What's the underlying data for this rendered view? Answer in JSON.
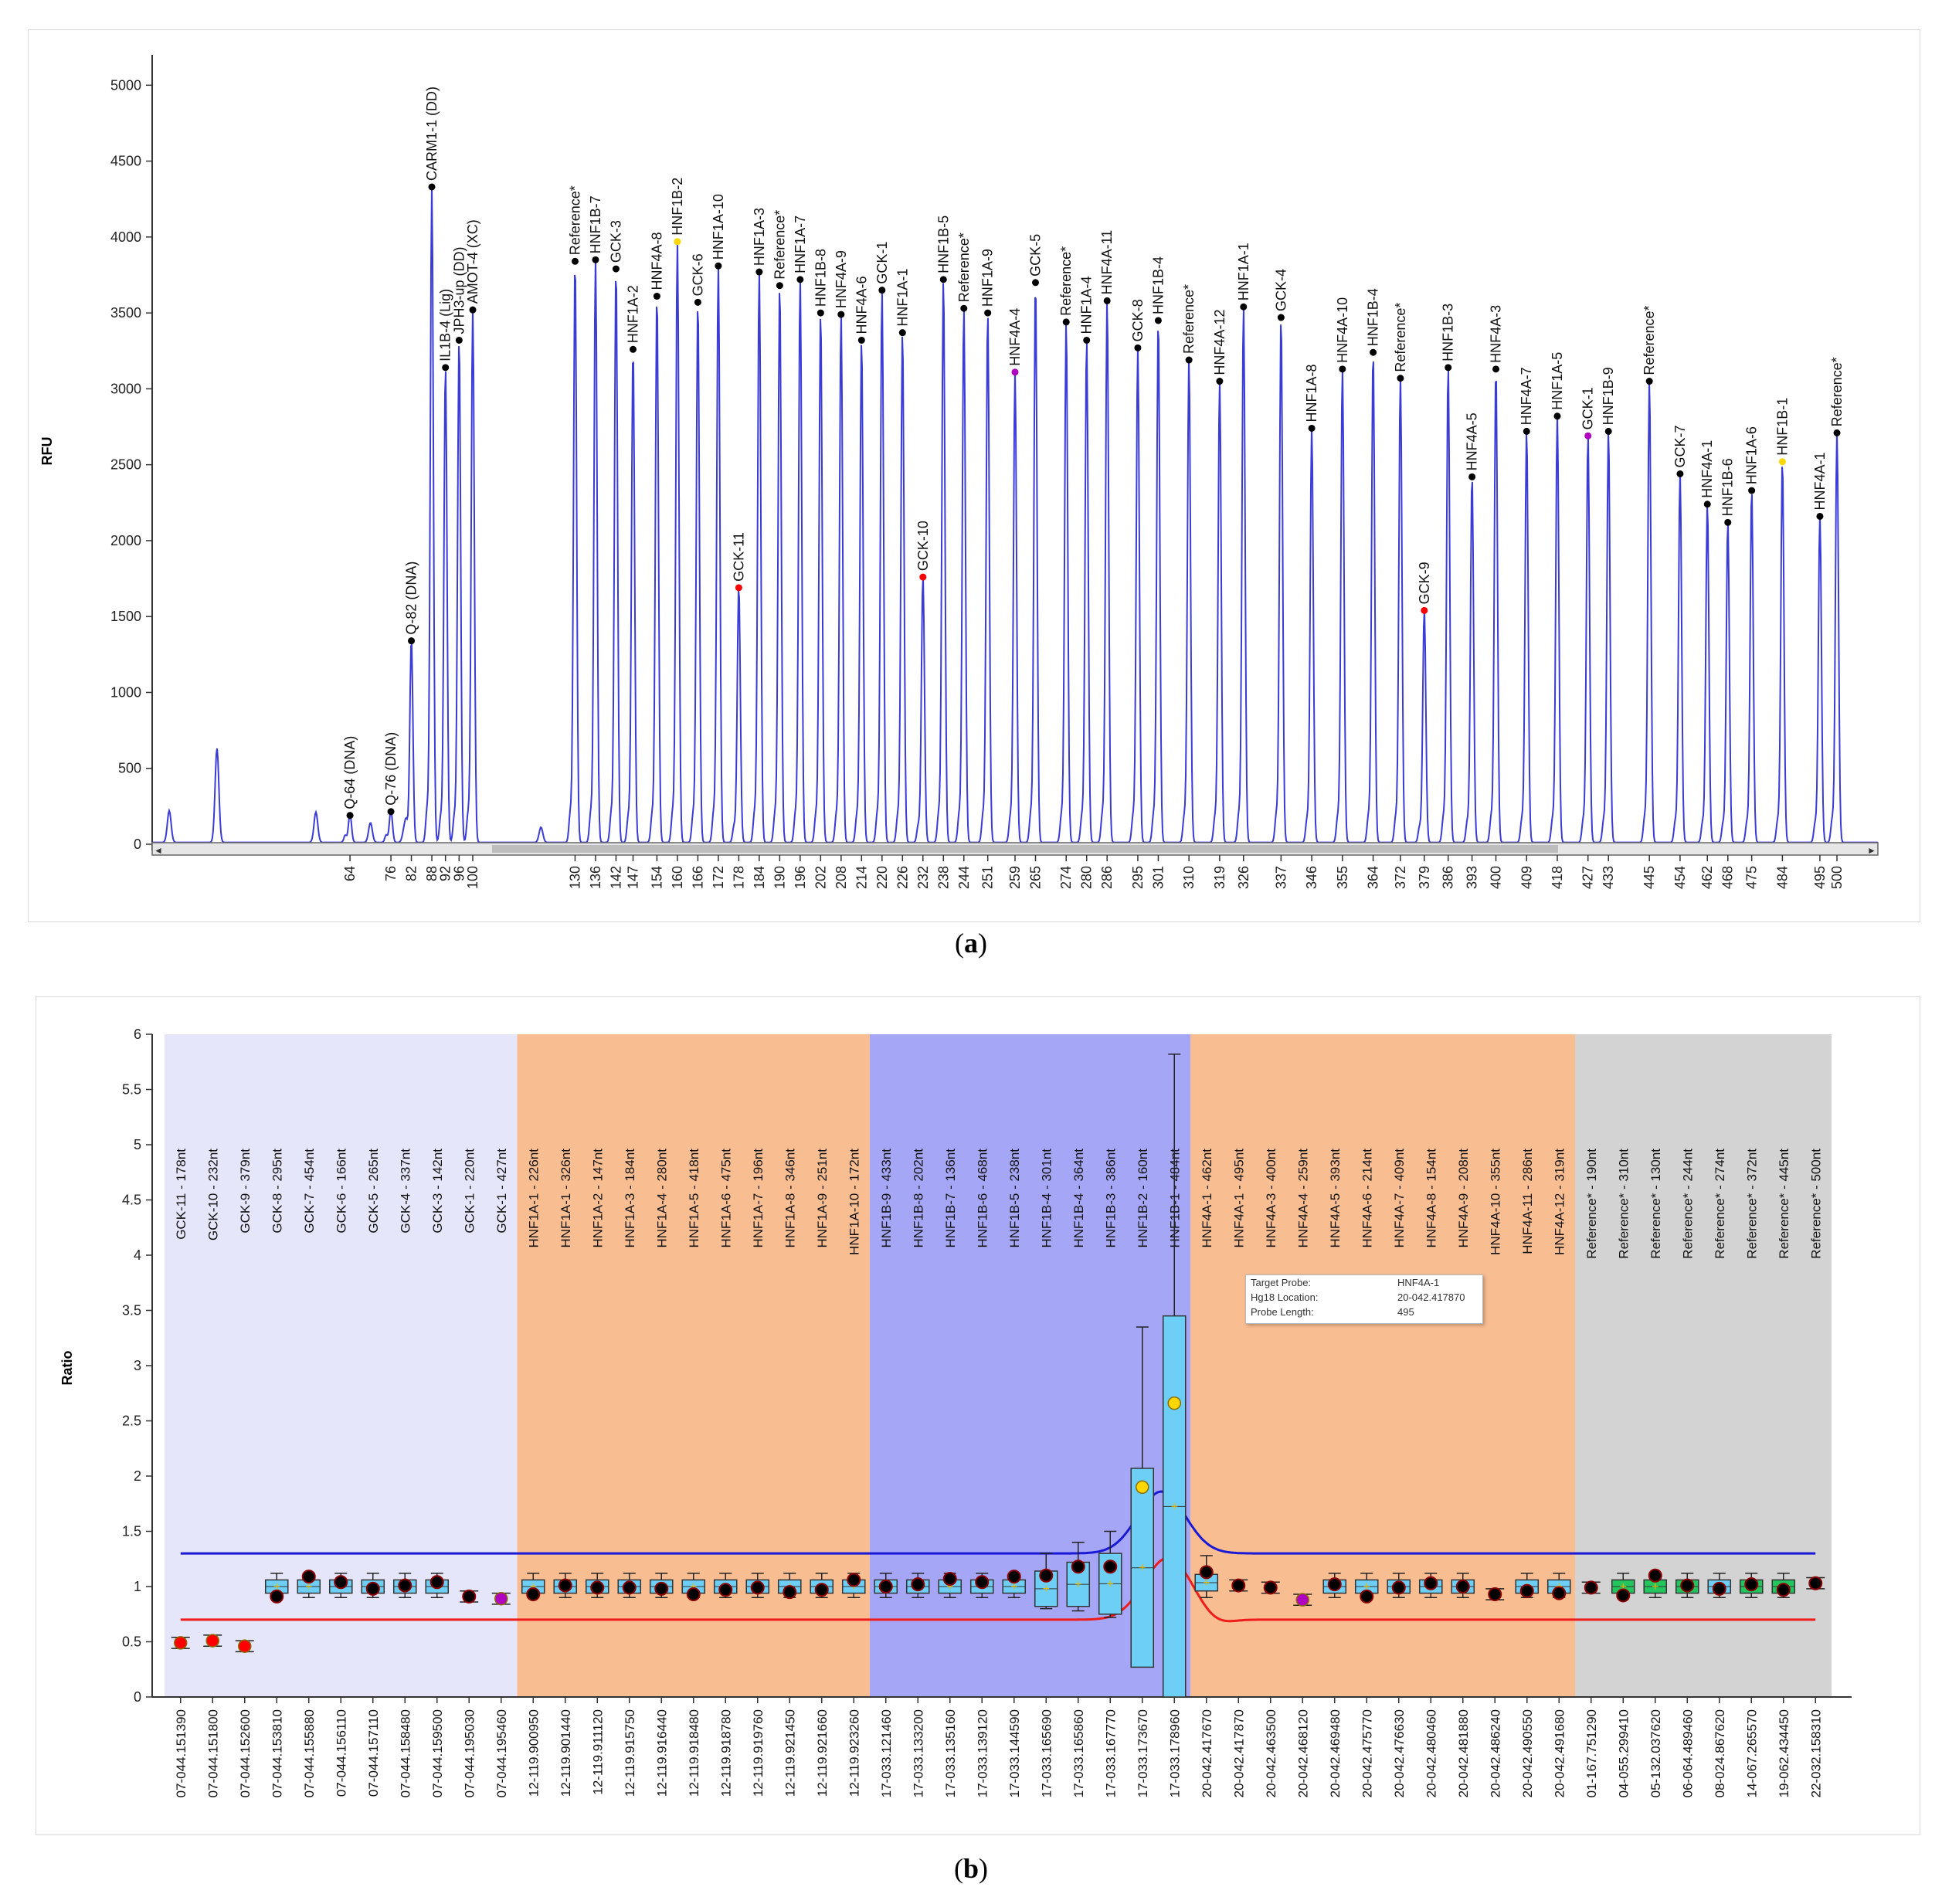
{
  "captions": {
    "a": "a",
    "b": "b"
  },
  "chart_data": [
    {
      "type": "line",
      "panel": "a",
      "ylabel": "RFU",
      "ylim": [
        0,
        5200
      ],
      "yticks": [
        0,
        500,
        1000,
        1500,
        2000,
        2500,
        3000,
        3500,
        4000,
        4500,
        5000
      ],
      "xlim": [
        6,
        512
      ],
      "control_peaks": [
        {
          "x": 11,
          "y": 210
        },
        {
          "x": 25,
          "y": 620
        },
        {
          "x": 54,
          "y": 200
        },
        {
          "x": 70,
          "y": 130
        },
        {
          "x": 80,
          "y": 100
        },
        {
          "x": 120,
          "y": 100
        }
      ],
      "peaks": [
        {
          "x": 64,
          "y": 190,
          "label": "Q-64 (DNA)",
          "color": "black"
        },
        {
          "x": 76,
          "y": 215,
          "label": "Q-76 (DNA)",
          "color": "black"
        },
        {
          "x": 82,
          "y": 1340,
          "label": "Q-82 (DNA)",
          "color": "black"
        },
        {
          "x": 88,
          "y": 4330,
          "label": "CARM1-1 (DD)",
          "color": "black"
        },
        {
          "x": 92,
          "y": 3140,
          "label": "IL1B-4 (Lig)",
          "color": "black"
        },
        {
          "x": 96,
          "y": 3320,
          "label": "JPH3-up (DD)",
          "color": "black"
        },
        {
          "x": 100,
          "y": 3520,
          "label": "AMOT-4 (XC)",
          "color": "black"
        },
        {
          "x": 130,
          "y": 3840,
          "label": "Reference*",
          "color": "black"
        },
        {
          "x": 136,
          "y": 3850,
          "label": "HNF1B-7",
          "color": "black"
        },
        {
          "x": 142,
          "y": 3790,
          "label": "GCK-3",
          "color": "black"
        },
        {
          "x": 147,
          "y": 3260,
          "label": "HNF1A-2",
          "color": "black"
        },
        {
          "x": 154,
          "y": 3610,
          "label": "HNF4A-8",
          "color": "black"
        },
        {
          "x": 160,
          "y": 3970,
          "label": "HNF1B-2",
          "color": "yellow"
        },
        {
          "x": 166,
          "y": 3570,
          "label": "GCK-6",
          "color": "black"
        },
        {
          "x": 172,
          "y": 3810,
          "label": "HNF1A-10",
          "color": "black"
        },
        {
          "x": 178,
          "y": 1690,
          "label": "GCK-11",
          "color": "red"
        },
        {
          "x": 184,
          "y": 3770,
          "label": "HNF1A-3",
          "color": "black"
        },
        {
          "x": 190,
          "y": 3680,
          "label": "Reference*",
          "color": "black"
        },
        {
          "x": 196,
          "y": 3720,
          "label": "HNF1A-7",
          "color": "black"
        },
        {
          "x": 202,
          "y": 3500,
          "label": "HNF1B-8",
          "color": "black"
        },
        {
          "x": 208,
          "y": 3490,
          "label": "HNF4A-9",
          "color": "black"
        },
        {
          "x": 214,
          "y": 3320,
          "label": "HNF4A-6",
          "color": "black"
        },
        {
          "x": 220,
          "y": 3650,
          "label": "GCK-1",
          "color": "black"
        },
        {
          "x": 226,
          "y": 3370,
          "label": "HNF1A-1",
          "color": "black"
        },
        {
          "x": 232,
          "y": 1760,
          "label": "GCK-10",
          "color": "red"
        },
        {
          "x": 238,
          "y": 3720,
          "label": "HNF1B-5",
          "color": "black"
        },
        {
          "x": 244,
          "y": 3530,
          "label": "Reference*",
          "color": "black"
        },
        {
          "x": 251,
          "y": 3500,
          "label": "HNF1A-9",
          "color": "black"
        },
        {
          "x": 259,
          "y": 3110,
          "label": "HNF4A-4",
          "color": "purple"
        },
        {
          "x": 265,
          "y": 3700,
          "label": "GCK-5",
          "color": "black"
        },
        {
          "x": 274,
          "y": 3440,
          "label": "Reference*",
          "color": "black"
        },
        {
          "x": 280,
          "y": 3320,
          "label": "HNF1A-4",
          "color": "black"
        },
        {
          "x": 286,
          "y": 3580,
          "label": "HNF4A-11",
          "color": "black"
        },
        {
          "x": 295,
          "y": 3270,
          "label": "GCK-8",
          "color": "black"
        },
        {
          "x": 301,
          "y": 3450,
          "label": "HNF1B-4",
          "color": "black"
        },
        {
          "x": 310,
          "y": 3190,
          "label": "Reference*",
          "color": "black"
        },
        {
          "x": 319,
          "y": 3050,
          "label": "HNF4A-12",
          "color": "black"
        },
        {
          "x": 326,
          "y": 3540,
          "label": "HNF1A-1",
          "color": "black"
        },
        {
          "x": 337,
          "y": 3470,
          "label": "GCK-4",
          "color": "black"
        },
        {
          "x": 346,
          "y": 2740,
          "label": "HNF1A-8",
          "color": "black"
        },
        {
          "x": 355,
          "y": 3130,
          "label": "HNF4A-10",
          "color": "black"
        },
        {
          "x": 364,
          "y": 3240,
          "label": "HNF1B-4",
          "color": "black"
        },
        {
          "x": 372,
          "y": 3070,
          "label": "Reference*",
          "color": "black"
        },
        {
          "x": 379,
          "y": 1540,
          "label": "GCK-9",
          "color": "red"
        },
        {
          "x": 386,
          "y": 3140,
          "label": "HNF1B-3",
          "color": "black"
        },
        {
          "x": 393,
          "y": 2420,
          "label": "HNF4A-5",
          "color": "black"
        },
        {
          "x": 400,
          "y": 3130,
          "label": "HNF4A-3",
          "color": "black"
        },
        {
          "x": 409,
          "y": 2720,
          "label": "HNF4A-7",
          "color": "black"
        },
        {
          "x": 418,
          "y": 2820,
          "label": "HNF1A-5",
          "color": "black"
        },
        {
          "x": 427,
          "y": 2690,
          "label": "GCK-1",
          "color": "purple"
        },
        {
          "x": 433,
          "y": 2720,
          "label": "HNF1B-9",
          "color": "black"
        },
        {
          "x": 445,
          "y": 3050,
          "label": "Reference*",
          "color": "black"
        },
        {
          "x": 454,
          "y": 2440,
          "label": "GCK-7",
          "color": "black"
        },
        {
          "x": 462,
          "y": 2240,
          "label": "HNF4A-1",
          "color": "black"
        },
        {
          "x": 468,
          "y": 2120,
          "label": "HNF1B-6",
          "color": "black"
        },
        {
          "x": 475,
          "y": 2330,
          "label": "HNF1A-6",
          "color": "black"
        },
        {
          "x": 484,
          "y": 2520,
          "label": "HNF1B-1",
          "color": "yellow"
        },
        {
          "x": 495,
          "y": 2160,
          "label": "HNF4A-1",
          "color": "black"
        },
        {
          "x": 500,
          "y": 2710,
          "label": "Reference*",
          "color": "black"
        }
      ],
      "xtick_labels": [
        "64",
        "76",
        "82",
        "88",
        "92",
        "96",
        "100",
        "130",
        "136",
        "142",
        "147",
        "154",
        "160",
        "166",
        "172",
        "178",
        "184",
        "190",
        "196",
        "202",
        "208",
        "214",
        "220",
        "226",
        "232",
        "238",
        "244",
        "251",
        "259",
        "265",
        "274",
        "280",
        "286",
        "295",
        "301",
        "310",
        "319",
        "326",
        "337",
        "346",
        "355",
        "364",
        "372",
        "379",
        "386",
        "393",
        "400",
        "409",
        "418",
        "427",
        "433",
        "445",
        "454",
        "462",
        "468",
        "475",
        "484",
        "495",
        "500"
      ]
    },
    {
      "type": "box",
      "panel": "b",
      "ylabel": "Ratio",
      "ylim": [
        0,
        6
      ],
      "yticks": [
        "0",
        "0.5",
        "1",
        "1.5",
        "2",
        "2.5",
        "3",
        "3.5",
        "4",
        "4.5",
        "5",
        "5.5",
        "6"
      ],
      "groups": [
        {
          "name": "GCK",
          "color": "#e6e6fa",
          "from": 0,
          "to": 11
        },
        {
          "name": "HNF1A",
          "color": "#f9bd92",
          "from": 11,
          "to": 22
        },
        {
          "name": "HNF1B",
          "color": "#a6a6f7",
          "from": 22,
          "to": 32
        },
        {
          "name": "HNF4A",
          "color": "#f9bd92",
          "from": 32,
          "to": 44
        },
        {
          "name": "Reference",
          "color": "#d3d3d3",
          "from": 44,
          "to": 52
        }
      ],
      "probes": [
        {
          "name": "GCK-11 - 178nt",
          "loc": "07-044.151390",
          "value": 0.49,
          "dot": "red",
          "box": false
        },
        {
          "name": "GCK-10 - 232nt",
          "loc": "07-044.151800",
          "value": 0.51,
          "dot": "red",
          "box": false
        },
        {
          "name": "GCK-9 - 379nt",
          "loc": "07-044.152600",
          "value": 0.46,
          "dot": "red",
          "box": false
        },
        {
          "name": "GCK-8 - 295nt",
          "loc": "07-044.153810",
          "value": 0.91,
          "dot": "black",
          "box": true
        },
        {
          "name": "GCK-7 - 454nt",
          "loc": "07-044.155880",
          "value": 1.09,
          "dot": "black",
          "box": true
        },
        {
          "name": "GCK-6 - 166nt",
          "loc": "07-044.156110",
          "value": 1.04,
          "dot": "black",
          "box": true
        },
        {
          "name": "GCK-5 - 265nt",
          "loc": "07-044.157110",
          "value": 0.98,
          "dot": "black",
          "box": true
        },
        {
          "name": "GCK-4 - 337nt",
          "loc": "07-044.158480",
          "value": 1.01,
          "dot": "black",
          "box": true
        },
        {
          "name": "GCK-3 - 142nt",
          "loc": "07-044.159500",
          "value": 1.04,
          "dot": "black",
          "box": true
        },
        {
          "name": "GCK-1 - 220nt",
          "loc": "07-044.195030",
          "value": 0.91,
          "dot": "black",
          "box": false
        },
        {
          "name": "GCK-1 - 427nt",
          "loc": "07-044.195460",
          "value": 0.89,
          "dot": "purple",
          "box": false
        },
        {
          "name": "HNF1A-1 - 226nt",
          "loc": "12-119.900950",
          "value": 0.93,
          "dot": "black",
          "box": true
        },
        {
          "name": "HNF1A-1 - 326nt",
          "loc": "12-119.901440",
          "value": 1.01,
          "dot": "black",
          "box": true
        },
        {
          "name": "HNF1A-2 - 147nt",
          "loc": "12-119.911120",
          "value": 0.99,
          "dot": "black",
          "box": true
        },
        {
          "name": "HNF1A-3 - 184nt",
          "loc": "12-119.915750",
          "value": 0.99,
          "dot": "black",
          "box": true
        },
        {
          "name": "HNF1A-4 - 280nt",
          "loc": "12-119.916440",
          "value": 0.98,
          "dot": "black",
          "box": true
        },
        {
          "name": "HNF1A-5 - 418nt",
          "loc": "12-119.918480",
          "value": 0.93,
          "dot": "black",
          "box": true
        },
        {
          "name": "HNF1A-6 - 475nt",
          "loc": "12-119.918780",
          "value": 0.97,
          "dot": "black",
          "box": true
        },
        {
          "name": "HNF1A-7 - 196nt",
          "loc": "12-119.919760",
          "value": 0.99,
          "dot": "black",
          "box": true
        },
        {
          "name": "HNF1A-8 - 346nt",
          "loc": "12-119.921450",
          "value": 0.95,
          "dot": "black",
          "box": true
        },
        {
          "name": "HNF1A-9 - 251nt",
          "loc": "12-119.921660",
          "value": 0.97,
          "dot": "black",
          "box": true
        },
        {
          "name": "HNF1A-10 - 172nt",
          "loc": "12-119.923260",
          "value": 1.06,
          "dot": "black",
          "box": true
        },
        {
          "name": "HNF1B-9 - 433nt",
          "loc": "17-033.121460",
          "value": 1.0,
          "dot": "black",
          "box": true
        },
        {
          "name": "HNF1B-8 - 202nt",
          "loc": "17-033.133200",
          "value": 1.02,
          "dot": "black",
          "box": true
        },
        {
          "name": "HNF1B-7 - 136nt",
          "loc": "17-033.135160",
          "value": 1.07,
          "dot": "black",
          "box": true
        },
        {
          "name": "HNF1B-6 - 468nt",
          "loc": "17-033.139120",
          "value": 1.04,
          "dot": "black",
          "box": true
        },
        {
          "name": "HNF1B-5 - 238nt",
          "loc": "17-033.144590",
          "value": 1.09,
          "dot": "black",
          "box": true
        },
        {
          "name": "HNF1B-4 - 301nt",
          "loc": "17-033.165690",
          "value": 1.1,
          "dot": "black",
          "box": true
        },
        {
          "name": "HNF1B-4 - 364nt",
          "loc": "17-033.165860",
          "value": 1.18,
          "dot": "black",
          "box": true
        },
        {
          "name": "HNF1B-3 - 386nt",
          "loc": "17-033.167770",
          "value": 1.18,
          "dot": "black",
          "box": true
        },
        {
          "name": "HNF1B-2 - 160nt",
          "loc": "17-033.173670",
          "value": 1.9,
          "dot": "yellow",
          "box": true
        },
        {
          "name": "HNF1B-1 - 484nt",
          "loc": "17-033.178960",
          "value": 2.66,
          "dot": "yellow",
          "box": true
        },
        {
          "name": "HNF4A-1 - 462nt",
          "loc": "20-042.417670",
          "value": 1.13,
          "dot": "black",
          "box": true
        },
        {
          "name": "HNF4A-1 - 495nt",
          "loc": "20-042.417870",
          "value": 1.01,
          "dot": "black",
          "box": false
        },
        {
          "name": "HNF4A-3 - 400nt",
          "loc": "20-042.463500",
          "value": 0.99,
          "dot": "black",
          "box": false
        },
        {
          "name": "HNF4A-4 - 259nt",
          "loc": "20-042.468120",
          "value": 0.88,
          "dot": "purple",
          "box": false
        },
        {
          "name": "HNF4A-5 - 393nt",
          "loc": "20-042.469480",
          "value": 1.02,
          "dot": "black",
          "box": true
        },
        {
          "name": "HNF4A-6 - 214nt",
          "loc": "20-042.475770",
          "value": 0.91,
          "dot": "black",
          "box": true
        },
        {
          "name": "HNF4A-7 - 409nt",
          "loc": "20-042.476630",
          "value": 0.99,
          "dot": "black",
          "box": true
        },
        {
          "name": "HNF4A-8 - 154nt",
          "loc": "20-042.480460",
          "value": 1.03,
          "dot": "black",
          "box": true
        },
        {
          "name": "HNF4A-9 - 208nt",
          "loc": "20-042.481880",
          "value": 1.0,
          "dot": "black",
          "box": true
        },
        {
          "name": "HNF4A-10 - 355nt",
          "loc": "20-042.486240",
          "value": 0.93,
          "dot": "black",
          "box": false
        },
        {
          "name": "HNF4A-11 - 286nt",
          "loc": "20-042.490550",
          "value": 0.96,
          "dot": "black",
          "box": true
        },
        {
          "name": "HNF4A-12 - 319nt",
          "loc": "20-042.491680",
          "value": 0.94,
          "dot": "black",
          "box": true
        },
        {
          "name": "Reference* - 190nt",
          "loc": "01-167.751290",
          "value": 0.99,
          "dot": "black",
          "box": false
        },
        {
          "name": "Reference* - 310nt",
          "loc": "04-055.299410",
          "value": 0.92,
          "dot": "black",
          "box": true
        },
        {
          "name": "Reference* - 130nt",
          "loc": "05-132.037620",
          "value": 1.1,
          "dot": "black",
          "box": true
        },
        {
          "name": "Reference* - 244nt",
          "loc": "06-064.489460",
          "value": 1.01,
          "dot": "black",
          "box": true
        },
        {
          "name": "Reference* - 274nt",
          "loc": "08-024.867620",
          "value": 0.98,
          "dot": "black",
          "box": true
        },
        {
          "name": "Reference* - 372nt",
          "loc": "14-067.265570",
          "value": 1.02,
          "dot": "black",
          "box": true
        },
        {
          "name": "Reference* - 445nt",
          "loc": "19-062.434450",
          "value": 0.97,
          "dot": "black",
          "box": true
        },
        {
          "name": "Reference* - 500nt",
          "loc": "22-032.158310",
          "value": 1.03,
          "dot": "black",
          "box": false
        }
      ],
      "upper_threshold": 1.3,
      "lower_threshold": 0.7,
      "tooltip": {
        "rows": [
          {
            "label": "Target Probe:",
            "value": "HNF4A-1"
          },
          {
            "label": "Hg18 Location:",
            "value": "20-042.417870"
          },
          {
            "label": "Probe Length:",
            "value": "495"
          }
        ]
      }
    }
  ]
}
